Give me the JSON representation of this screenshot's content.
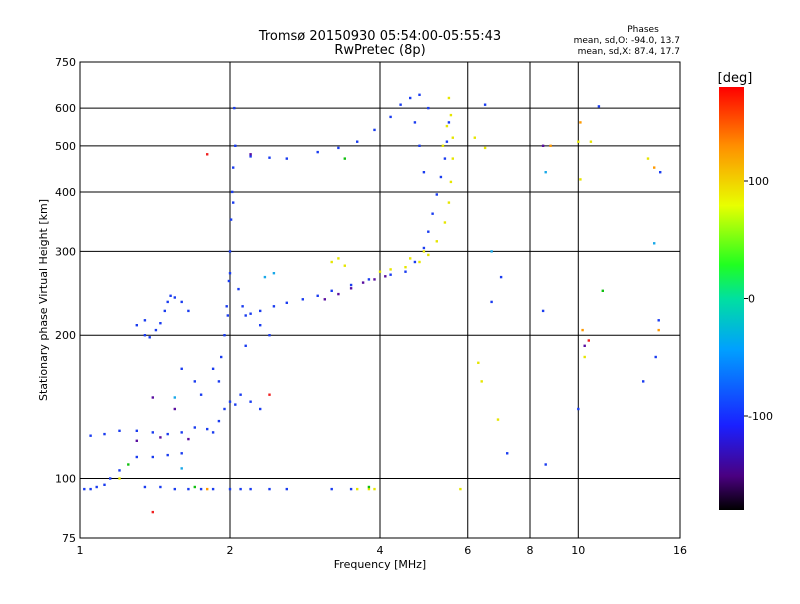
{
  "chart_data": {
    "type": "scatter",
    "title": "Tromsø 20150930 05:54:00-05:55:43",
    "subtitle": "RwPretec (8p)",
    "stats": {
      "heading": "Phases",
      "o_line": "mean, sd,O: -94.0, 13.7",
      "x_line": "mean, sd,X:  87.4, 17.7"
    },
    "xlabel": "Frequency [MHz]",
    "ylabel": "Stationary phase Virtual Height [km]",
    "xscale": "log",
    "yscale": "log",
    "xlim": [
      1,
      16
    ],
    "ylim": [
      75,
      750
    ],
    "xticks": [
      1,
      2,
      4,
      6,
      8,
      10,
      16
    ],
    "yticks": [
      75,
      100,
      200,
      300,
      400,
      500,
      600,
      750
    ],
    "grid": true,
    "colorbar": {
      "label": "[deg]",
      "min": -180,
      "max": 180,
      "ticks": [
        100,
        0,
        -100
      ]
    },
    "series": [
      {
        "phase_deg": -100,
        "color": "#1a3cf0",
        "points": [
          [
            1.02,
            95
          ],
          [
            1.05,
            95
          ],
          [
            1.08,
            96
          ],
          [
            1.12,
            97
          ],
          [
            1.15,
            100
          ],
          [
            1.2,
            104
          ],
          [
            1.35,
            96
          ],
          [
            1.45,
            96
          ],
          [
            1.55,
            95
          ],
          [
            1.65,
            95
          ],
          [
            1.75,
            95
          ],
          [
            1.85,
            95
          ],
          [
            2.0,
            95
          ],
          [
            2.1,
            95
          ],
          [
            2.2,
            95
          ],
          [
            2.4,
            95
          ],
          [
            2.6,
            95
          ],
          [
            3.2,
            95
          ],
          [
            3.5,
            95
          ],
          [
            1.05,
            123
          ],
          [
            1.12,
            124
          ],
          [
            1.2,
            126
          ],
          [
            1.3,
            126
          ],
          [
            1.4,
            125
          ],
          [
            1.5,
            124
          ],
          [
            1.6,
            125
          ],
          [
            1.7,
            128
          ],
          [
            1.8,
            127
          ],
          [
            1.85,
            125
          ],
          [
            1.9,
            132
          ],
          [
            1.95,
            140
          ],
          [
            2.0,
            145
          ],
          [
            2.05,
            143
          ],
          [
            1.3,
            111
          ],
          [
            1.4,
            111
          ],
          [
            1.5,
            112
          ],
          [
            1.6,
            113
          ],
          [
            1.35,
            200
          ],
          [
            1.38,
            198
          ],
          [
            1.42,
            205
          ],
          [
            1.45,
            212
          ],
          [
            1.48,
            225
          ],
          [
            1.5,
            235
          ],
          [
            1.52,
            242
          ],
          [
            1.55,
            240
          ],
          [
            1.6,
            235
          ],
          [
            1.65,
            225
          ],
          [
            1.3,
            210
          ],
          [
            1.35,
            215
          ],
          [
            1.9,
            160
          ],
          [
            1.92,
            180
          ],
          [
            1.95,
            200
          ],
          [
            1.97,
            230
          ],
          [
            1.99,
            260
          ],
          [
            2.0,
            300
          ],
          [
            2.01,
            350
          ],
          [
            2.02,
            400
          ],
          [
            2.03,
            450
          ],
          [
            2.05,
            500
          ],
          [
            2.04,
            600
          ],
          [
            2.03,
            380
          ],
          [
            2.0,
            270
          ],
          [
            1.98,
            220
          ],
          [
            2.08,
            250
          ],
          [
            2.12,
            230
          ],
          [
            2.15,
            220
          ],
          [
            2.2,
            222
          ],
          [
            2.3,
            225
          ],
          [
            2.45,
            230
          ],
          [
            2.6,
            234
          ],
          [
            2.8,
            238
          ],
          [
            3.0,
            242
          ],
          [
            3.2,
            248
          ],
          [
            3.5,
            255
          ],
          [
            3.8,
            262
          ],
          [
            4.2,
            268
          ],
          [
            4.5,
            272
          ],
          [
            4.7,
            285
          ],
          [
            4.9,
            305
          ],
          [
            5.0,
            330
          ],
          [
            5.1,
            360
          ],
          [
            5.2,
            395
          ],
          [
            5.3,
            430
          ],
          [
            5.4,
            470
          ],
          [
            5.45,
            510
          ],
          [
            5.5,
            560
          ],
          [
            2.2,
            475
          ],
          [
            2.4,
            472
          ],
          [
            2.6,
            470
          ],
          [
            3.0,
            485
          ],
          [
            3.3,
            495
          ],
          [
            3.6,
            510
          ],
          [
            3.9,
            540
          ],
          [
            4.2,
            575
          ],
          [
            4.4,
            610
          ],
          [
            4.6,
            630
          ],
          [
            4.8,
            640
          ],
          [
            5.0,
            600
          ],
          [
            4.8,
            500
          ],
          [
            4.9,
            440
          ],
          [
            4.7,
            560
          ],
          [
            1.6,
            170
          ],
          [
            1.7,
            160
          ],
          [
            1.75,
            150
          ],
          [
            1.85,
            170
          ],
          [
            2.1,
            150
          ],
          [
            2.2,
            145
          ],
          [
            2.3,
            140
          ],
          [
            2.15,
            190
          ],
          [
            2.3,
            210
          ],
          [
            2.4,
            200
          ],
          [
            6.5,
            610
          ],
          [
            11,
            605
          ],
          [
            7.0,
            265
          ],
          [
            6.7,
            235
          ],
          [
            8.5,
            225
          ],
          [
            10,
            140
          ],
          [
            8.6,
            107
          ],
          [
            7.2,
            113
          ],
          [
            14.3,
            180
          ],
          [
            13.5,
            160
          ],
          [
            14.5,
            215
          ],
          [
            14.6,
            440
          ]
        ]
      },
      {
        "phase_deg": -130,
        "color": "#5a0fa0",
        "points": [
          [
            3.1,
            238
          ],
          [
            3.3,
            244
          ],
          [
            3.5,
            251
          ],
          [
            3.7,
            258
          ],
          [
            3.9,
            262
          ],
          [
            4.1,
            266
          ],
          [
            1.3,
            120
          ],
          [
            1.45,
            122
          ],
          [
            1.65,
            121
          ],
          [
            1.4,
            148
          ],
          [
            1.55,
            140
          ],
          [
            2.2,
            480
          ],
          [
            10.3,
            190
          ],
          [
            8.5,
            500
          ]
        ]
      },
      {
        "phase_deg": 90,
        "color": "#e6e600",
        "points": [
          [
            3.2,
            285
          ],
          [
            3.3,
            290
          ],
          [
            3.4,
            280
          ],
          [
            4.0,
            272
          ],
          [
            4.2,
            275
          ],
          [
            4.5,
            278
          ],
          [
            4.8,
            285
          ],
          [
            5.0,
            295
          ],
          [
            5.2,
            315
          ],
          [
            5.4,
            345
          ],
          [
            5.5,
            380
          ],
          [
            5.55,
            420
          ],
          [
            5.6,
            470
          ],
          [
            5.6,
            520
          ],
          [
            5.55,
            580
          ],
          [
            5.5,
            630
          ],
          [
            5.45,
            550
          ],
          [
            5.35,
            500
          ],
          [
            4.6,
            290
          ],
          [
            4.9,
            300
          ],
          [
            3.6,
            95
          ],
          [
            3.8,
            95
          ],
          [
            3.9,
            95
          ],
          [
            1.2,
            100
          ],
          [
            6.2,
            520
          ],
          [
            6.3,
            175
          ],
          [
            6.4,
            160
          ],
          [
            6.9,
            133
          ],
          [
            5.8,
            95
          ],
          [
            6.5,
            495
          ],
          [
            10.1,
            425
          ],
          [
            13.8,
            470
          ],
          [
            10,
            510
          ],
          [
            10.3,
            180
          ],
          [
            10.6,
            510
          ]
        ]
      },
      {
        "phase_deg": 150,
        "color": "#ff9a00",
        "points": [
          [
            8.8,
            500
          ],
          [
            10.1,
            560
          ],
          [
            10.2,
            205
          ],
          [
            14.2,
            450
          ],
          [
            1.8,
            95
          ],
          [
            14.5,
            205
          ]
        ]
      },
      {
        "phase_deg": 0,
        "color": "#10c010",
        "points": [
          [
            3.4,
            470
          ],
          [
            1.25,
            107
          ],
          [
            1.7,
            96
          ],
          [
            11.2,
            248
          ],
          [
            3.8,
            96
          ]
        ]
      },
      {
        "phase_deg": -60,
        "color": "#18a8e8",
        "points": [
          [
            2.35,
            265
          ],
          [
            2.45,
            270
          ],
          [
            1.6,
            105
          ],
          [
            1.55,
            148
          ],
          [
            6.7,
            300
          ],
          [
            8.6,
            440
          ],
          [
            14.2,
            312
          ]
        ]
      },
      {
        "phase_deg": 180,
        "color": "#f02020",
        "points": [
          [
            1.4,
            85
          ],
          [
            2.4,
            150
          ],
          [
            1.8,
            480
          ],
          [
            10.5,
            195
          ]
        ]
      }
    ]
  }
}
